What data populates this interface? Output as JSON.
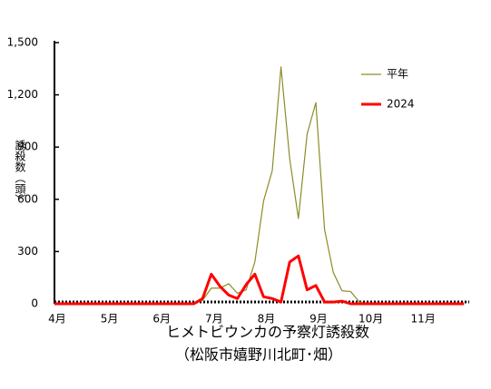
{
  "chart_data": {
    "type": "line",
    "title": "ヒメトビウンカの予察灯誘殺数",
    "subtitle": "（松阪市嬉野川北町･畑）",
    "y_label": "誘殺数（頭）",
    "categories": [
      "4月",
      null,
      null,
      null,
      null,
      null,
      "5月",
      null,
      null,
      null,
      null,
      null,
      "6月",
      null,
      null,
      null,
      null,
      null,
      "7月",
      null,
      null,
      null,
      null,
      null,
      "8月",
      null,
      null,
      null,
      null,
      null,
      "9月",
      null,
      null,
      null,
      null,
      null,
      "10月",
      null,
      null,
      null,
      null,
      null,
      "11月",
      null,
      null,
      null,
      null,
      null
    ],
    "series": [
      {
        "name": "平年",
        "color": "#8c8c28",
        "width": 1.2,
        "values": [
          0,
          0,
          0,
          0,
          0,
          0,
          0,
          0,
          0,
          0,
          0,
          0,
          0,
          0,
          0,
          0,
          0,
          20,
          90,
          90,
          115,
          60,
          80,
          240,
          590,
          765,
          1360,
          833,
          490,
          975,
          1155,
          427,
          180,
          75,
          70,
          10,
          0,
          0,
          0,
          0,
          0,
          0,
          0,
          0,
          0,
          0,
          0,
          0
        ]
      },
      {
        "name": "2024",
        "color": "#ff0000",
        "width": 3,
        "values": [
          0,
          0,
          0,
          0,
          0,
          0,
          0,
          0,
          0,
          0,
          0,
          0,
          0,
          0,
          0,
          0,
          0,
          30,
          170,
          100,
          50,
          30,
          110,
          170,
          40,
          30,
          10,
          240,
          275,
          80,
          105,
          10,
          10,
          15,
          0,
          0,
          0,
          0,
          0,
          0,
          0,
          0,
          0,
          0,
          0,
          0,
          0,
          0
        ]
      }
    ],
    "ylim": [
      0,
      1500
    ],
    "yticks": [
      0,
      300,
      600,
      900,
      {
        "value": 1200,
        "label": "1,200"
      },
      {
        "value": 1500,
        "label": "1,500"
      }
    ],
    "legend": "top-right"
  }
}
